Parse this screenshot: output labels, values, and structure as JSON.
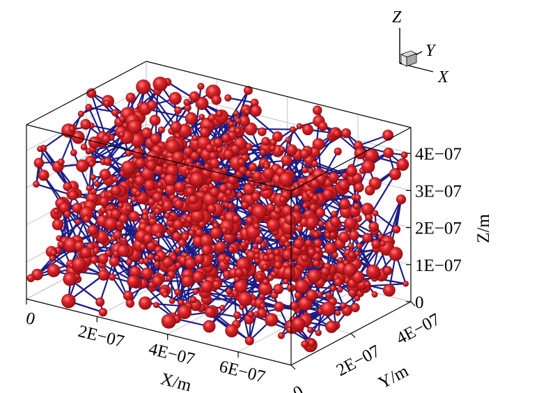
{
  "chart_data": {
    "type": "scatter",
    "subtype": "3d-pore-network",
    "title": "",
    "x_axis": {
      "title": "X/m",
      "range": [
        0,
        7.5e-07
      ],
      "ticks": [
        0,
        2e-07,
        4e-07,
        6e-07
      ],
      "tick_labels": [
        "0",
        "2E−07",
        "4E−07",
        "6E−07"
      ]
    },
    "y_axis": {
      "title": "Y/m",
      "range": [
        0,
        4e-07
      ],
      "ticks": [
        0,
        2e-07,
        4e-07
      ],
      "tick_labels": [
        "0",
        "2E−07",
        "4E−07"
      ]
    },
    "z_axis": {
      "title": "Z/m",
      "range": [
        0,
        4.7e-07
      ],
      "ticks": [
        0,
        1e-07,
        2e-07,
        3e-07,
        4e-07
      ],
      "tick_labels": [
        "0",
        "1E−07",
        "2E−07",
        "3E−07",
        "4E−07"
      ]
    },
    "orientation_triad": {
      "x": "X",
      "y": "Y",
      "z": "Z"
    },
    "series": [
      {
        "kind": "pores",
        "marker": "sphere",
        "color": "#d41c24",
        "count": 1000
      },
      {
        "kind": "throats",
        "marker": "line",
        "color": "#1c1c86",
        "count": 1650
      }
    ],
    "grid": true
  }
}
